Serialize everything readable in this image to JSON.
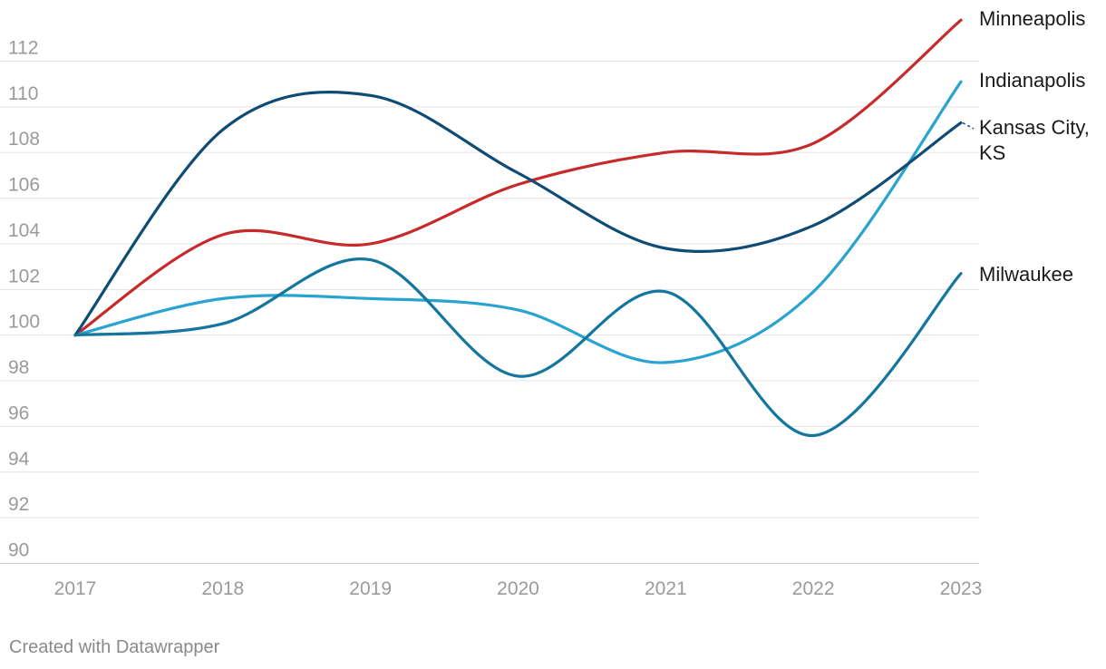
{
  "chart_data": {
    "type": "line",
    "title": "",
    "xlabel": "",
    "ylabel": "",
    "x": [
      "2017",
      "2018",
      "2019",
      "2020",
      "2021",
      "2022",
      "2023"
    ],
    "ylim": [
      90,
      114
    ],
    "yticks": [
      90,
      92,
      94,
      96,
      98,
      100,
      102,
      104,
      106,
      108,
      110,
      112
    ],
    "grid": true,
    "legend": "direct labels at line ends (right)",
    "series": [
      {
        "name": "Minneapolis",
        "label_lines": [
          "Minneapolis"
        ],
        "color": "#c62a2a",
        "values": [
          100,
          104.4,
          104.0,
          106.6,
          108.0,
          108.4,
          113.8
        ]
      },
      {
        "name": "Indianapolis",
        "label_lines": [
          "Indianapolis"
        ],
        "color": "#29a3cf",
        "values": [
          100,
          101.6,
          101.6,
          101.1,
          98.8,
          101.9,
          111.1
        ]
      },
      {
        "name": "Kansas City, KS",
        "label_lines": [
          "Kansas City,",
          "KS"
        ],
        "color": "#0f4c75",
        "values": [
          100,
          109.0,
          110.5,
          107.1,
          103.8,
          104.8,
          109.3
        ]
      },
      {
        "name": "Milwaukee",
        "label_lines": [
          "Milwaukee"
        ],
        "color": "#12769e",
        "values": [
          100,
          100.5,
          103.3,
          98.2,
          101.9,
          95.6,
          102.7
        ]
      }
    ]
  },
  "footer": {
    "credit": "Created with Datawrapper"
  }
}
